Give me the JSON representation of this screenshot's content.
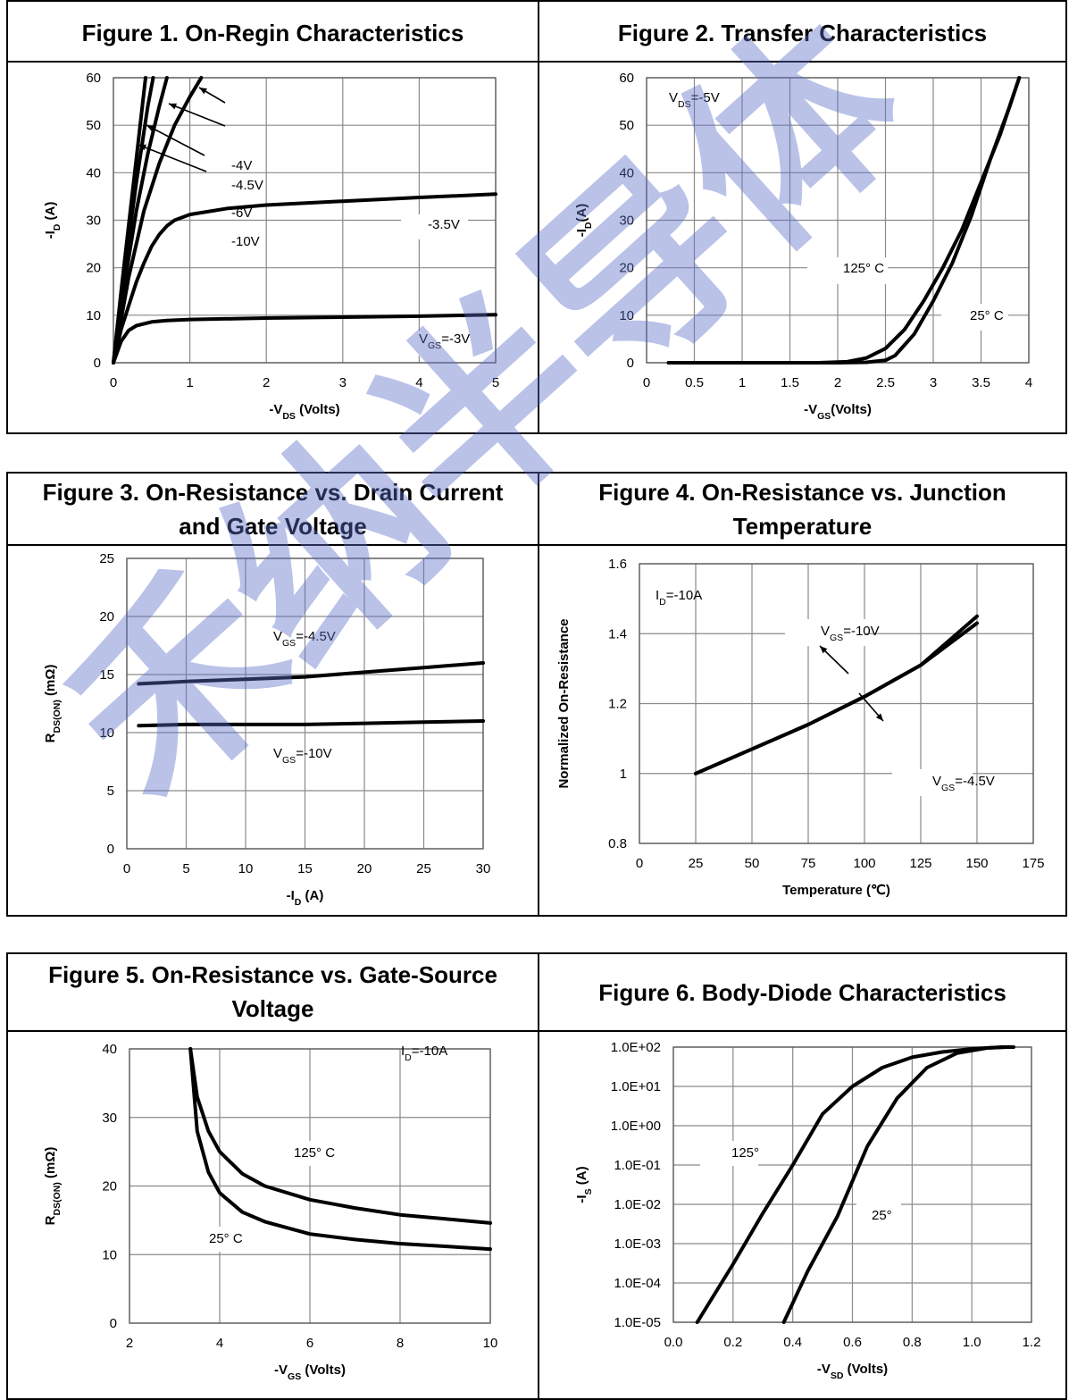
{
  "watermark": {
    "text": "禾纳半导体",
    "color": "#5a6ec8"
  },
  "figures": [
    {
      "title_lines": [
        "Figure 1. On-Regin Characteristics"
      ]
    },
    {
      "title_lines": [
        "Figure 2. Transfer Characteristics"
      ]
    },
    {
      "title_lines": [
        "Figure 3. On-Resistance vs. Drain Current",
        "and Gate Voltage"
      ]
    },
    {
      "title_lines": [
        "Figure 4. On-Resistance vs. Junction",
        "Temperature"
      ]
    },
    {
      "title_lines": [
        "Figure 5. On-Resistance vs. Gate-Source",
        "Voltage"
      ]
    },
    {
      "title_lines": [
        "Figure 6. Body-Diode Characteristics"
      ]
    }
  ],
  "chart_data": [
    {
      "type": "line",
      "xlabel": "-VDS (Volts)",
      "ylabel": "-ID (A)",
      "xlim": [
        0,
        5
      ],
      "ylim": [
        0,
        60
      ],
      "xticks": [
        "0",
        "1",
        "2",
        "3",
        "4",
        "5"
      ],
      "yticks": [
        "0",
        "10",
        "20",
        "30",
        "40",
        "50",
        "60"
      ],
      "series": [
        {
          "name": "VGS=-3V",
          "x": [
            0,
            0.1,
            0.2,
            0.3,
            0.5,
            0.7,
            1,
            2,
            3,
            4,
            5
          ],
          "y": [
            0,
            4.5,
            6.8,
            7.8,
            8.6,
            8.9,
            9.1,
            9.4,
            9.6,
            9.8,
            10.1
          ]
        },
        {
          "name": "-3.5V",
          "x": [
            0,
            0.1,
            0.2,
            0.3,
            0.4,
            0.5,
            0.6,
            0.7,
            0.8,
            1,
            1.5,
            2,
            3,
            4,
            5
          ],
          "y": [
            0,
            7,
            12,
            17,
            21,
            24.5,
            27,
            28.8,
            30,
            31.2,
            32.5,
            33.2,
            34,
            34.8,
            35.5
          ]
        },
        {
          "name": "-4V",
          "x": [
            0,
            0.2,
            0.4,
            0.6,
            0.8,
            1,
            1.15
          ],
          "y": [
            0,
            18,
            32,
            42,
            50,
            56,
            60
          ]
        },
        {
          "name": "-4.5V",
          "x": [
            0,
            0.15,
            0.3,
            0.45,
            0.6,
            0.7
          ],
          "y": [
            0,
            17,
            32,
            44,
            54,
            60
          ]
        },
        {
          "name": "-6V",
          "x": [
            0,
            0.15,
            0.3,
            0.45,
            0.52
          ],
          "y": [
            0,
            20,
            38,
            54,
            60
          ]
        },
        {
          "name": "-10V",
          "x": [
            0,
            0.1,
            0.2,
            0.3,
            0.42
          ],
          "y": [
            0,
            15,
            29,
            43,
            60
          ]
        }
      ],
      "annotations": [
        "-4V",
        "-4.5V",
        "-6V",
        "-10V",
        "-3.5V",
        "VGS=-3V"
      ]
    },
    {
      "type": "line",
      "xlabel": "-VGS(Volts)",
      "ylabel": "-ID(A)",
      "xlim": [
        0,
        4
      ],
      "ylim": [
        0,
        60
      ],
      "xticks": [
        "0",
        "0.5",
        "1",
        "1.5",
        "2",
        "2.5",
        "3",
        "3.5",
        "4"
      ],
      "yticks": [
        "0",
        "10",
        "20",
        "30",
        "40",
        "50",
        "60"
      ],
      "series": [
        {
          "name": "125° C",
          "x": [
            0.23,
            1,
            1.8,
            2.1,
            2.3,
            2.5,
            2.7,
            2.9,
            3.1,
            3.3,
            3.5,
            3.7,
            3.9
          ],
          "y": [
            0,
            0,
            0,
            0.2,
            1,
            3,
            7,
            13,
            20,
            28,
            38,
            48,
            60
          ]
        },
        {
          "name": "25° C",
          "x": [
            0.23,
            1,
            2,
            2.3,
            2.5,
            2.6,
            2.8,
            3,
            3.2,
            3.4,
            3.6,
            3.8,
            3.9
          ],
          "y": [
            0,
            0,
            0,
            0.1,
            0.5,
            1.5,
            6,
            13,
            21,
            31,
            43,
            54,
            60
          ]
        }
      ],
      "annotations": [
        "VDS=-5V",
        "125° C",
        "25° C"
      ]
    },
    {
      "type": "line",
      "xlabel": "-ID (A)",
      "ylabel": "RDS(ON) (mΩ)",
      "xlim": [
        0,
        30
      ],
      "ylim": [
        0,
        25
      ],
      "xticks": [
        "0",
        "5",
        "10",
        "15",
        "20",
        "25",
        "30"
      ],
      "yticks": [
        "0",
        "5",
        "10",
        "15",
        "20",
        "25"
      ],
      "series": [
        {
          "name": "VGS=-4.5V",
          "x": [
            1,
            3,
            5,
            10,
            15,
            20,
            25,
            30
          ],
          "y": [
            14.2,
            14.3,
            14.4,
            14.6,
            14.8,
            15.2,
            15.6,
            16
          ]
        },
        {
          "name": "VGS=-10V",
          "x": [
            1,
            5,
            10,
            15,
            20,
            25,
            30
          ],
          "y": [
            10.6,
            10.7,
            10.7,
            10.7,
            10.8,
            10.9,
            11
          ]
        }
      ]
    },
    {
      "type": "line",
      "xlabel": "Temperature (℃)",
      "ylabel": "Normalized On-Resistance",
      "xlim": [
        0,
        175
      ],
      "ylim": [
        0.8,
        1.6
      ],
      "xticks": [
        "0",
        "25",
        "50",
        "75",
        "100",
        "125",
        "150",
        "175"
      ],
      "yticks": [
        "0.8",
        "1",
        "1.2",
        "1.4",
        "1.6"
      ],
      "series": [
        {
          "name": "VGS=-10V",
          "x": [
            25,
            50,
            75,
            100,
            125,
            150
          ],
          "y": [
            1,
            1.07,
            1.14,
            1.22,
            1.31,
            1.45
          ]
        },
        {
          "name": "VGS=-4.5V",
          "x": [
            25,
            50,
            75,
            100,
            125,
            150
          ],
          "y": [
            1,
            1.07,
            1.14,
            1.22,
            1.31,
            1.43
          ]
        }
      ],
      "annotations": [
        "ID=-10A",
        "VGS=-10V",
        "VGS=-4.5V"
      ]
    },
    {
      "type": "line",
      "xlabel": "-VGS (Volts)",
      "ylabel": "RDS(ON) (mΩ)",
      "xlim": [
        2,
        10
      ],
      "ylim": [
        0,
        40
      ],
      "xticks": [
        "2",
        "4",
        "6",
        "8",
        "10"
      ],
      "yticks": [
        "0",
        "10",
        "20",
        "30",
        "40"
      ],
      "series": [
        {
          "name": "125° C",
          "x": [
            3.35,
            3.5,
            3.75,
            4,
            4.5,
            5,
            6,
            7,
            8,
            9,
            10
          ],
          "y": [
            40,
            33,
            28,
            25,
            21.8,
            20,
            18,
            16.8,
            15.8,
            15.2,
            14.6
          ]
        },
        {
          "name": "25° C",
          "x": [
            3.35,
            3.5,
            3.75,
            4,
            4.5,
            5,
            6,
            7,
            8,
            9,
            10
          ],
          "y": [
            40,
            28,
            22,
            19,
            16.2,
            14.8,
            13,
            12.2,
            11.6,
            11.2,
            10.8
          ]
        }
      ],
      "annotations": [
        "ID=-10A",
        "125° C",
        "25° C"
      ]
    },
    {
      "type": "line",
      "xlabel": "-VSD (Volts)",
      "ylabel": "-IS (A)",
      "xlim": [
        0,
        1.2
      ],
      "ylim": [
        -5,
        2
      ],
      "yscale": "log",
      "xticks": [
        "0.0",
        "0.2",
        "0.4",
        "0.6",
        "0.8",
        "1.0",
        "1.2"
      ],
      "yticks": [
        "1.0E-05",
        "1.0E-04",
        "1.0E-03",
        "1.0E-02",
        "1.0E-01",
        "1.0E+00",
        "1.0E+01",
        "1.0E+02"
      ],
      "series": [
        {
          "name": "125°",
          "x": [
            0.08,
            0.2,
            0.3,
            0.4,
            0.5,
            0.6,
            0.7,
            0.8,
            0.9,
            1.0,
            1.1,
            1.14
          ],
          "y": [
            1e-05,
            0.0003,
            0.006,
            0.1,
            2,
            10,
            30,
            55,
            75,
            90,
            100,
            100
          ]
        },
        {
          "name": "25°",
          "x": [
            0.37,
            0.45,
            0.55,
            0.65,
            0.75,
            0.85,
            0.95,
            1.05,
            1.12
          ],
          "y": [
            1e-05,
            0.0002,
            0.005,
            0.3,
            5,
            30,
            70,
            95,
            100
          ]
        }
      ],
      "annotations": [
        "125°",
        "25°"
      ]
    }
  ]
}
